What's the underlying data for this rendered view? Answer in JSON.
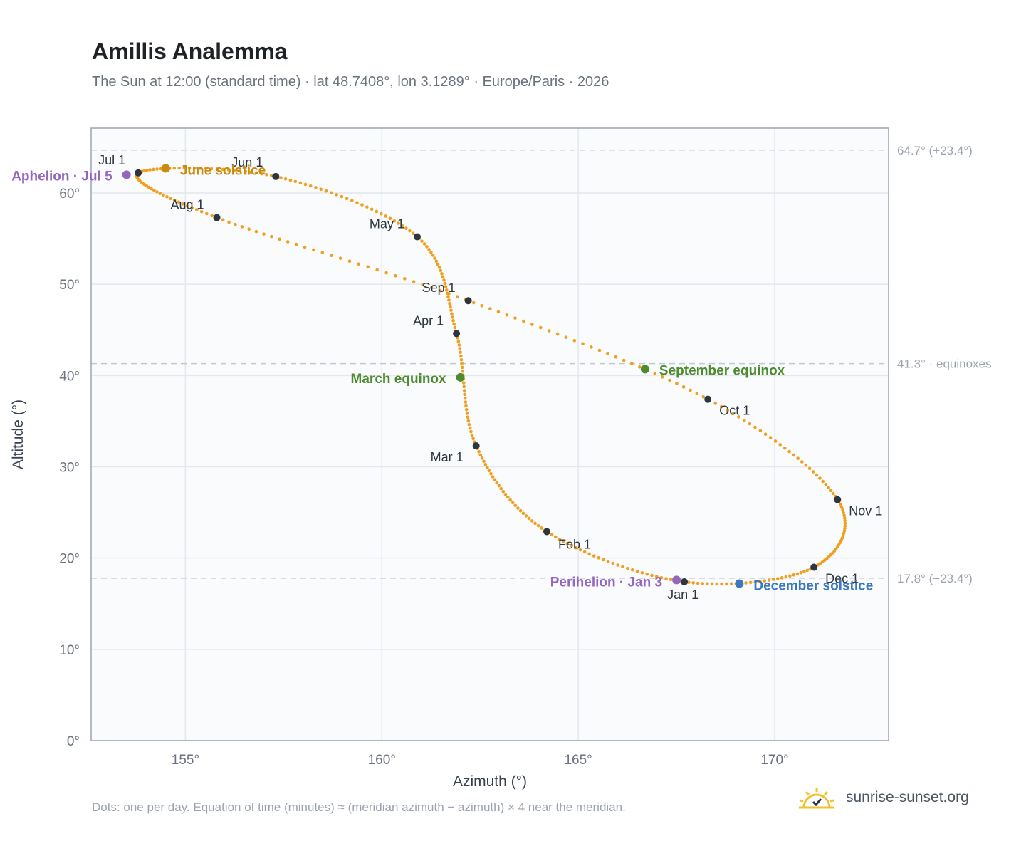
{
  "header": {
    "title": "Amillis Analemma",
    "subtitle": "The Sun at 12:00 (standard time) · lat 48.7408°, lon 3.1289° · Europe/Paris · 2026"
  },
  "footer": {
    "note": "Dots: one per day. Equation of time (minutes) ≈ (meridian azimuth − azimuth) × 4 near the meridian.",
    "brand": "sunrise-sunset.org"
  },
  "colors": {
    "path": "#f0a020",
    "marker": "#2d3540",
    "equinox": "#4e8a2e",
    "june_solstice": "#c98a10",
    "december_solstice": "#3b78c0",
    "apsis": "#9467bd",
    "plot_bg": "#f9fbfd",
    "grid": "#e3e8ee",
    "axis": "#9aa5b4"
  },
  "chart_data": {
    "type": "scatter",
    "xlabel": "Azimuth (°)",
    "ylabel": "Altitude (°)",
    "xlim": [
      152.6,
      172.9
    ],
    "ylim": [
      0,
      67.1
    ],
    "xticks": [
      155,
      160,
      165,
      170
    ],
    "xtick_labels": [
      "155°",
      "160°",
      "165°",
      "170°"
    ],
    "yticks": [
      0,
      10,
      20,
      30,
      40,
      50,
      60
    ],
    "ytick_labels": [
      "0°",
      "10°",
      "20°",
      "30°",
      "40°",
      "50°",
      "60°"
    ],
    "grid": true,
    "reference_lines": [
      {
        "y": 64.7,
        "label": "64.7° (+23.4°)"
      },
      {
        "y": 41.3,
        "label": "41.3° · equinoxes"
      },
      {
        "y": 17.8,
        "label": "17.8° (−23.4°)"
      }
    ],
    "series": [
      {
        "dot_count": 365,
        "x": [
          167.7,
          164.2,
          162.4,
          161.9,
          160.9,
          157.3,
          153.8,
          155.8,
          162.2,
          168.3,
          171.6,
          171.0,
          167.7
        ],
        "y": [
          17.4,
          22.9,
          32.3,
          44.6,
          55.2,
          61.8,
          62.2,
          57.3,
          48.2,
          37.4,
          26.4,
          19.0,
          17.4
        ]
      }
    ],
    "month_markers": [
      {
        "label": "Jan 1",
        "x": 167.7,
        "y": 17.4
      },
      {
        "label": "Feb 1",
        "x": 164.2,
        "y": 22.9
      },
      {
        "label": "Mar 1",
        "x": 162.4,
        "y": 32.3
      },
      {
        "label": "Apr 1",
        "x": 161.9,
        "y": 44.6
      },
      {
        "label": "May 1",
        "x": 160.9,
        "y": 55.2
      },
      {
        "label": "Jun 1",
        "x": 157.3,
        "y": 61.8
      },
      {
        "label": "Jul 1",
        "x": 153.8,
        "y": 62.2
      },
      {
        "label": "Aug 1",
        "x": 155.8,
        "y": 57.3
      },
      {
        "label": "Sep 1",
        "x": 162.2,
        "y": 48.2
      },
      {
        "label": "Oct 1",
        "x": 168.3,
        "y": 37.4
      },
      {
        "label": "Nov 1",
        "x": 171.6,
        "y": 26.4
      },
      {
        "label": "Dec 1",
        "x": 171.0,
        "y": 19.0
      }
    ],
    "events": [
      {
        "label": "March equinox",
        "x": 162.0,
        "y": 39.8,
        "kind": "equinox"
      },
      {
        "label": "September equinox",
        "x": 166.7,
        "y": 40.7,
        "kind": "equinox"
      },
      {
        "label": "June solstice",
        "x": 154.5,
        "y": 62.7,
        "kind": "june_solstice"
      },
      {
        "label": "December solstice",
        "x": 169.1,
        "y": 17.2,
        "kind": "december_solstice"
      },
      {
        "label": "Aphelion · Jul 5",
        "x": 153.5,
        "y": 62.0,
        "kind": "apsis"
      },
      {
        "label": "Perihelion · Jan 3",
        "x": 167.5,
        "y": 17.6,
        "kind": "apsis"
      }
    ]
  }
}
